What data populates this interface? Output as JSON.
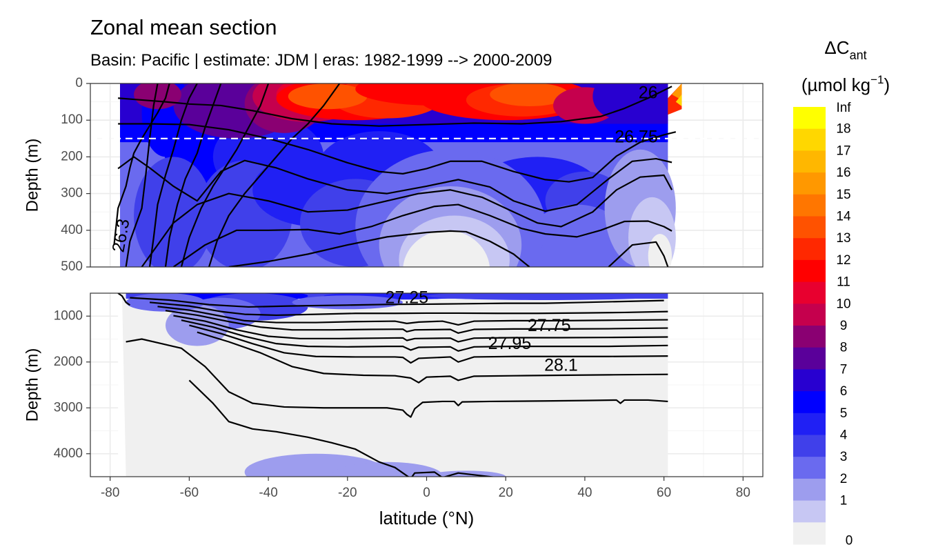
{
  "chart_data": {
    "type": "heatmap",
    "title": "Zonal mean section",
    "subtitle": "Basin: Pacific | estimate: JDM  | eras: 1982-1999 --> 2000-2009",
    "xlabel": "latitude (°N)",
    "x_ticks": [
      -80,
      -60,
      -40,
      -20,
      0,
      20,
      40,
      60,
      80
    ],
    "xlim": [
      -85,
      85
    ],
    "panels": [
      {
        "name": "upper",
        "ylabel": "Depth (m)",
        "ylim": [
          0,
          500
        ],
        "y_ticks": [
          0,
          100,
          200,
          300,
          400,
          500
        ],
        "dashed_reference_depth": 150,
        "contour_labels": [
          {
            "text": "26",
            "lat": 56,
            "depth": 28
          },
          {
            "text": "26.75",
            "lat": 53,
            "depth": 148
          },
          {
            "text": "26.3",
            "lat": -77,
            "depth": 415
          }
        ]
      },
      {
        "name": "lower",
        "ylabel": "Depth (m)",
        "ylim": [
          500,
          4500
        ],
        "y_ticks": [
          1000,
          2000,
          3000,
          4000
        ],
        "contour_labels": [
          {
            "text": "27.25",
            "lat": -5,
            "depth": 620
          },
          {
            "text": "27.75",
            "lat": 31,
            "depth": 1230
          },
          {
            "text": "27.95",
            "lat": 21,
            "depth": 1620
          },
          {
            "text": "28.1",
            "lat": 34,
            "depth": 2090
          }
        ]
      }
    ],
    "legend": {
      "title_main": "ΔC",
      "title_sub": "ant",
      "unit_open": "(µmol kg",
      "unit_sup": "−1",
      "unit_close": ")",
      "placement": "right",
      "labels": [
        "Inf",
        "18",
        "17",
        "16",
        "15",
        "14",
        "13",
        "12",
        "11",
        "10",
        "9",
        "8",
        "7",
        "6",
        "5",
        "4",
        "3",
        "2",
        "1",
        "0"
      ],
      "colors": [
        "#ffff00",
        "#ffd700",
        "#ffb700",
        "#ff9800",
        "#ff7600",
        "#ff5200",
        "#ff2800",
        "#ff0000",
        "#e8002f",
        "#c5004d",
        "#8a0072",
        "#5a009a",
        "#2800d0",
        "#0000ff",
        "#2020f4",
        "#4040ea",
        "#6a6aef",
        "#9d9dee",
        "#c7c7f3",
        "#f0f0f0"
      ]
    }
  }
}
